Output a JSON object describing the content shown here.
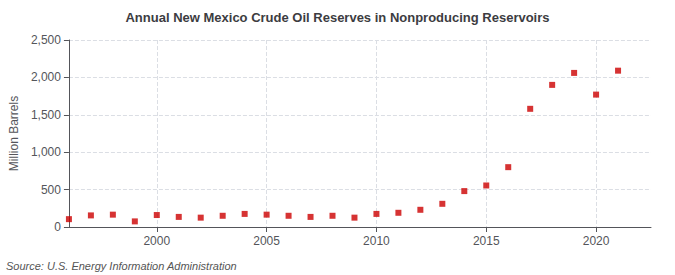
{
  "chart_data": {
    "type": "scatter",
    "title": "Annual New Mexico Crude Oil Reserves in Nonproducing Reservoirs",
    "ylabel": "Million Barrels",
    "annotations": [
      "Source: U.S. Energy Information Administration"
    ],
    "x": [
      1996,
      1997,
      1998,
      1999,
      2000,
      2001,
      2002,
      2003,
      2004,
      2005,
      2006,
      2007,
      2008,
      2009,
      2010,
      2011,
      2012,
      2013,
      2014,
      2015,
      2016,
      2017,
      2018,
      2019,
      2020,
      2021
    ],
    "values": [
      105,
      155,
      165,
      75,
      160,
      135,
      125,
      150,
      175,
      165,
      150,
      135,
      150,
      125,
      175,
      190,
      230,
      310,
      480,
      555,
      800,
      1580,
      1900,
      2060,
      1770,
      2090
    ],
    "color": "#cc0000",
    "marker": "square",
    "xlim": [
      1996.0,
      2022.5
    ],
    "xticks": [
      2000,
      2005,
      2010,
      2015,
      2020
    ],
    "ylim": [
      0,
      2500
    ],
    "yticks": [
      0,
      500,
      {
        "value": 1000,
        "label": "1,000"
      },
      {
        "value": 1500,
        "label": "1,500"
      },
      {
        "value": 2000,
        "label": "2,000"
      },
      {
        "value": 2500,
        "label": "2,500"
      }
    ],
    "grid": true
  }
}
